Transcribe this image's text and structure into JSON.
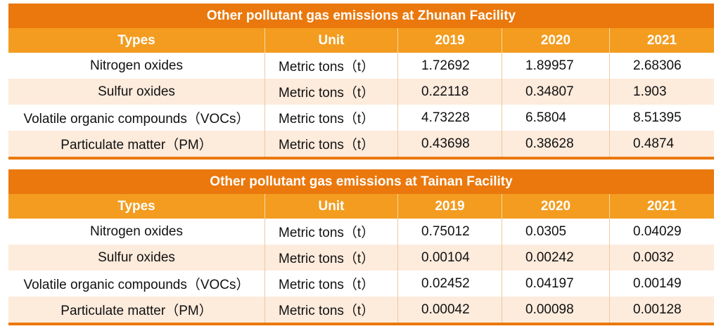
{
  "tables": [
    {
      "title": "Other pollutant gas emissions at Zhunan Facility",
      "headers": [
        "Types",
        "Unit",
        "2019",
        "2020",
        "2021"
      ],
      "rows": [
        [
          "Nitrogen oxides",
          "Metric tons（t）",
          1.72692,
          1.89957,
          2.68306
        ],
        [
          "Sulfur oxides",
          "Metric tons（t）",
          0.22118,
          0.34807,
          1.903
        ],
        [
          "Volatile organic compounds（VOCs）",
          "Metric tons（t）",
          4.73228,
          6.5804,
          8.51395
        ],
        [
          "Particulate matter（PM）",
          "Metric tons（t）",
          0.43698,
          0.38628,
          0.4874
        ]
      ]
    },
    {
      "title": "Other pollutant gas emissions at Tainan Facility",
      "headers": [
        "Types",
        "Unit",
        "2019",
        "2020",
        "2021"
      ],
      "rows": [
        [
          "Nitrogen oxides",
          "Metric tons（t）",
          0.75012,
          0.0305,
          0.04029
        ],
        [
          "Sulfur oxides",
          "Metric tons（t）",
          0.00104,
          0.00242,
          0.0032
        ],
        [
          "Volatile organic compounds（VOCs）",
          "Metric tons（t）",
          0.02452,
          0.04197,
          0.00149
        ],
        [
          "Particulate matter（PM）",
          "Metric tons（t）",
          0.00042,
          0.00098,
          0.00128
        ]
      ]
    }
  ]
}
